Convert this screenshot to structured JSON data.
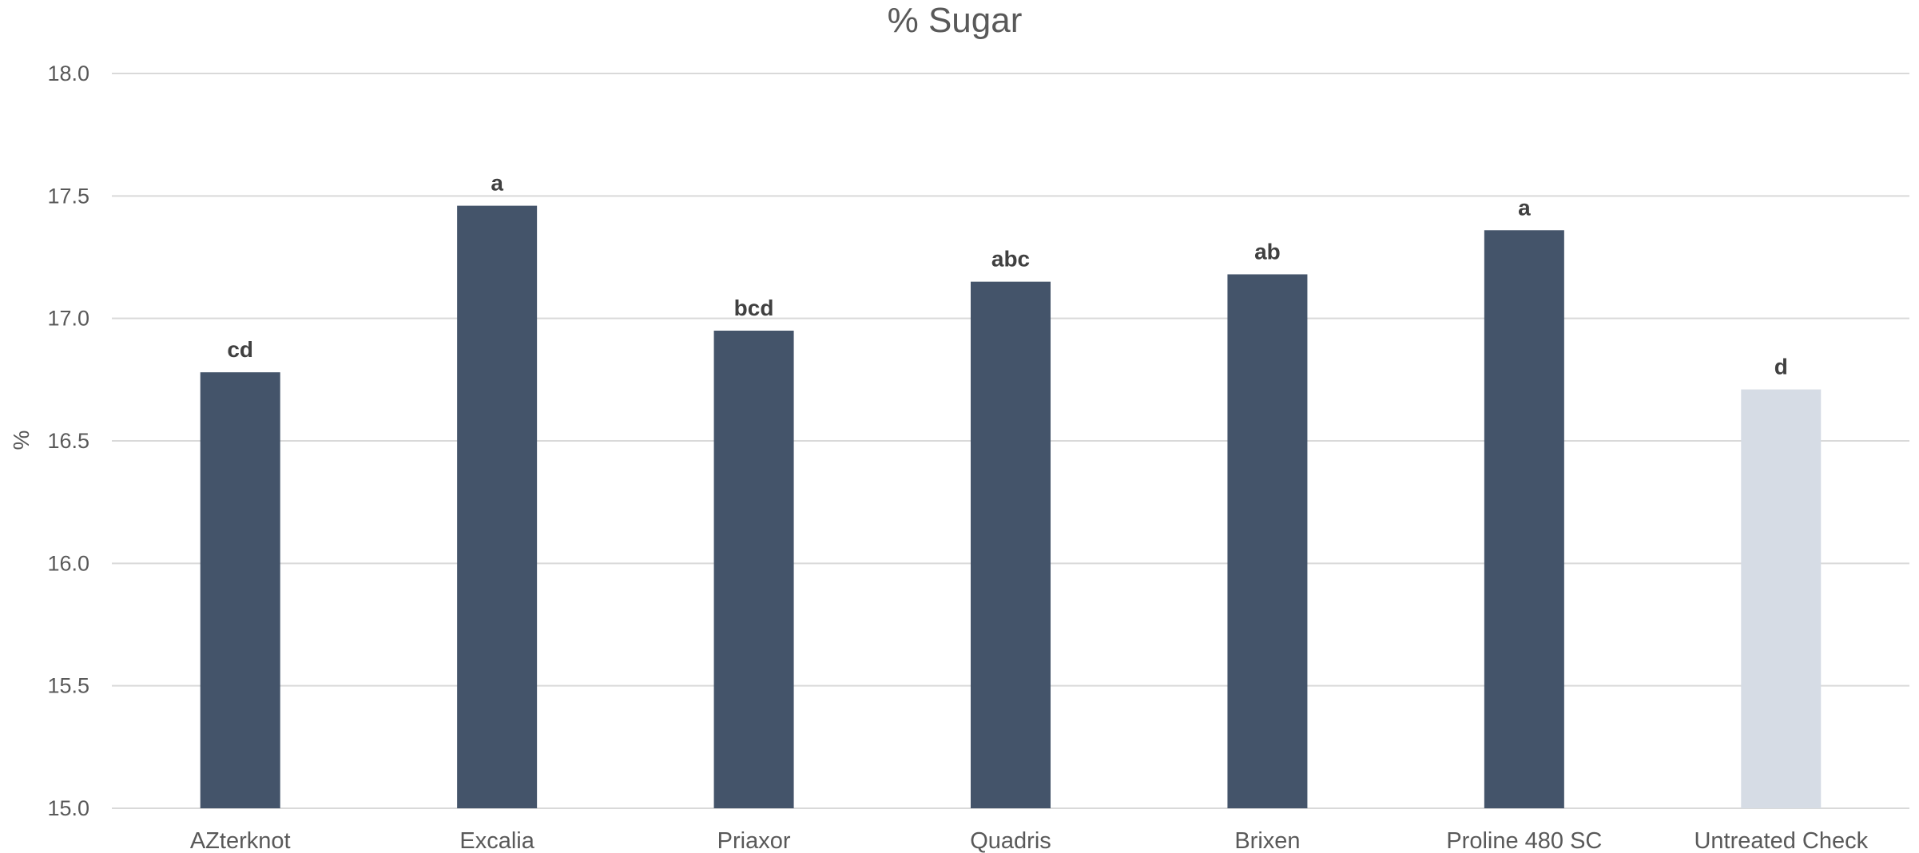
{
  "chart_data": {
    "type": "bar",
    "title": "% Sugar",
    "xlabel": "",
    "ylabel": "%",
    "ylim": [
      15.0,
      18.0
    ],
    "yticks": [
      "15.0",
      "15.5",
      "16.0",
      "16.5",
      "17.0",
      "17.5",
      "18.0"
    ],
    "categories": [
      "AZterknot",
      "Excalia",
      "Priaxor",
      "Quadris",
      "Brixen",
      "Proline 480 SC",
      "Untreated Check"
    ],
    "values": [
      16.78,
      17.46,
      16.95,
      17.15,
      17.18,
      17.36,
      16.71
    ],
    "data_labels": [
      "cd",
      "a",
      "bcd",
      "abc",
      "ab",
      "a",
      "d"
    ],
    "bar_colors": [
      "#44546a",
      "#44546a",
      "#44546a",
      "#44546a",
      "#44546a",
      "#44546a",
      "#d6dce5"
    ],
    "grid": true,
    "legend": "none"
  }
}
